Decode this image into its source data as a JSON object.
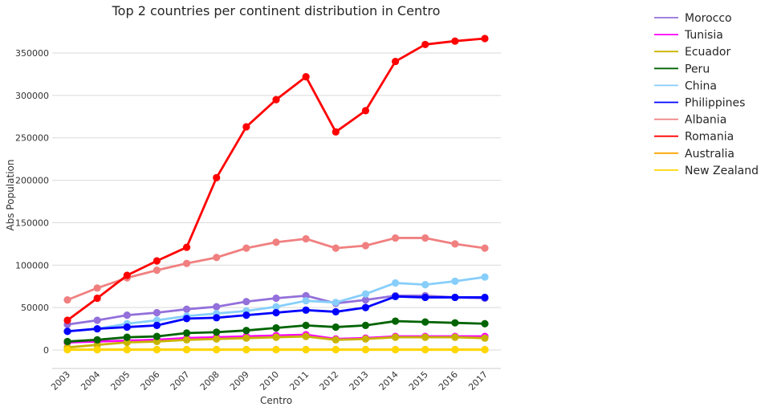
{
  "chart_data": {
    "type": "line",
    "title": "Top 2 countries per continent distribution in Centro",
    "xlabel": "Centro",
    "ylabel": "Abs Population",
    "x": [
      "2003",
      "2004",
      "2005",
      "2006",
      "2007",
      "2008",
      "2009",
      "2010",
      "2011",
      "2012",
      "2013",
      "2014",
      "2015",
      "2016",
      "2017"
    ],
    "yticks": [
      0,
      50000,
      100000,
      150000,
      200000,
      250000,
      300000,
      350000
    ],
    "ylim": [
      -20000,
      375000
    ],
    "grid": "horizontal",
    "legend_position": "right",
    "series": [
      {
        "name": "Morocco",
        "color": "#9370DB",
        "values": [
          30000,
          35000,
          41000,
          44000,
          48000,
          51000,
          57000,
          61000,
          64000,
          55000,
          59000,
          64000,
          64000,
          62000,
          61000
        ]
      },
      {
        "name": "Tunisia",
        "color": "#FF00FF",
        "values": [
          9000,
          10000,
          11000,
          12000,
          14000,
          15000,
          16000,
          17000,
          18000,
          13000,
          14000,
          16000,
          16000,
          16000,
          16000
        ]
      },
      {
        "name": "Ecuador",
        "color": "#C8B400",
        "values": [
          3000,
          6000,
          9000,
          10000,
          12000,
          13000,
          14000,
          15000,
          16000,
          12000,
          13000,
          15000,
          15000,
          15000,
          14000
        ]
      },
      {
        "name": "Peru",
        "color": "#006400",
        "values": [
          10000,
          12000,
          15000,
          16000,
          20000,
          21000,
          23000,
          26000,
          29000,
          27000,
          29000,
          34000,
          33000,
          32000,
          31000
        ]
      },
      {
        "name": "China",
        "color": "#87CEFA",
        "values": [
          22000,
          25000,
          31000,
          35000,
          40000,
          43000,
          46000,
          51000,
          58000,
          56000,
          66000,
          79000,
          77000,
          81000,
          86000
        ]
      },
      {
        "name": "Philippines",
        "color": "#0000FF",
        "values": [
          22000,
          25000,
          27000,
          29000,
          37000,
          38000,
          41000,
          44000,
          47000,
          45000,
          50000,
          63000,
          62000,
          62000,
          62000
        ]
      },
      {
        "name": "Albania",
        "color": "#F08080",
        "values": [
          59000,
          73000,
          85000,
          94000,
          102000,
          109000,
          120000,
          127000,
          131000,
          120000,
          123000,
          132000,
          132000,
          125000,
          120000
        ]
      },
      {
        "name": "Romania",
        "color": "#FF0000",
        "values": [
          35000,
          61000,
          88000,
          105000,
          121000,
          203000,
          263000,
          295000,
          322000,
          257000,
          282000,
          340000,
          360000,
          364000,
          367000
        ]
      },
      {
        "name": "Australia",
        "color": "#FFA500",
        "values": [
          500,
          500,
          500,
          500,
          500,
          500,
          500,
          500,
          500,
          500,
          500,
          500,
          500,
          500,
          500
        ]
      },
      {
        "name": "New Zealand",
        "color": "#FFD700",
        "values": [
          300,
          300,
          300,
          300,
          300,
          300,
          300,
          300,
          300,
          300,
          300,
          300,
          300,
          300,
          300
        ]
      }
    ]
  }
}
